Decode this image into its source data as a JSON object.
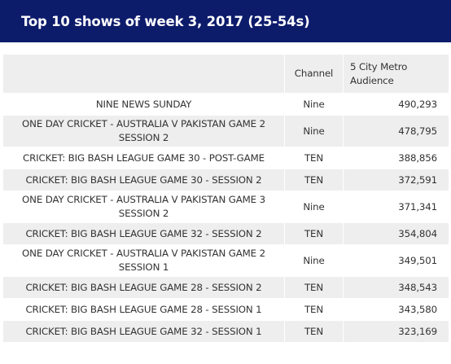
{
  "title": "Top 10 shows of week 3, 2017 (25-54s)",
  "table": {
    "headers": {
      "show": "",
      "channel": "Channel",
      "audience": "5 City Metro Audience"
    },
    "rows": [
      {
        "show": "NINE NEWS SUNDAY",
        "channel": "Nine",
        "audience": "490,293"
      },
      {
        "show": "ONE DAY CRICKET - AUSTRALIA V PAKISTAN GAME 2 SESSION 2",
        "channel": "Nine",
        "audience": "478,795"
      },
      {
        "show": "CRICKET: BIG BASH LEAGUE GAME 30 - POST-GAME",
        "channel": "TEN",
        "audience": "388,856"
      },
      {
        "show": "CRICKET: BIG BASH LEAGUE GAME 30 - SESSION 2",
        "channel": "TEN",
        "audience": "372,591"
      },
      {
        "show": "ONE DAY CRICKET - AUSTRALIA V PAKISTAN GAME 3 SESSION 2",
        "channel": "Nine",
        "audience": "371,341"
      },
      {
        "show": "CRICKET: BIG BASH LEAGUE GAME 32 - SESSION 2",
        "channel": "TEN",
        "audience": "354,804"
      },
      {
        "show": "ONE DAY CRICKET - AUSTRALIA V PAKISTAN GAME 2 SESSION 1",
        "channel": "Nine",
        "audience": "349,501"
      },
      {
        "show": "CRICKET: BIG BASH LEAGUE GAME 28 - SESSION 2",
        "channel": "TEN",
        "audience": "348,543"
      },
      {
        "show": "CRICKET: BIG BASH LEAGUE GAME 28 - SESSION 1",
        "channel": "TEN",
        "audience": "343,580"
      },
      {
        "show": "CRICKET: BIG BASH LEAGUE GAME 32 - SESSION 1",
        "channel": "TEN",
        "audience": "323,169"
      }
    ]
  },
  "colors": {
    "banner_bg": "#0d1b6b",
    "banner_text": "#ffffff",
    "header_bg": "#eeeeee",
    "stripe_bg": "#eeeeee",
    "text": "#333333"
  }
}
